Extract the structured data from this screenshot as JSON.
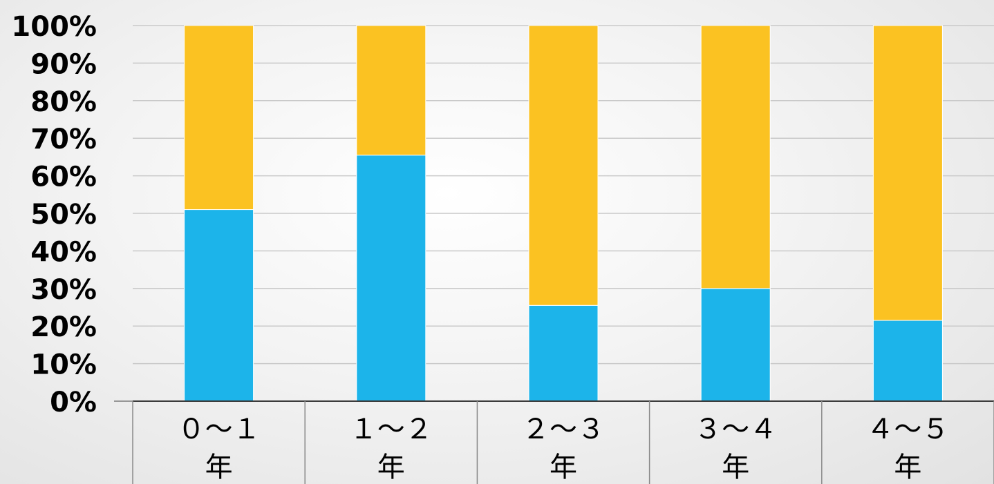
{
  "chart_data": {
    "type": "bar",
    "stacked": true,
    "normalized_percent": true,
    "categories": [
      [
        "０～１",
        "年"
      ],
      [
        "１～２",
        "年"
      ],
      [
        "２～３",
        "年"
      ],
      [
        "３～４",
        "年"
      ],
      [
        "４～５",
        "年"
      ]
    ],
    "series": [
      {
        "color": "#1cb4ea",
        "values": [
          51,
          65.5,
          25.5,
          30,
          21.5
        ]
      },
      {
        "color": "#fbc222",
        "values": [
          49,
          34.5,
          74.5,
          70,
          78.5
        ]
      }
    ],
    "ylim": [
      0,
      100
    ],
    "yticks": [
      "0%",
      "10%",
      "20%",
      "30%",
      "40%",
      "50%",
      "60%",
      "70%",
      "80%",
      "90%",
      "100%"
    ],
    "grid": true,
    "legend": "none"
  }
}
